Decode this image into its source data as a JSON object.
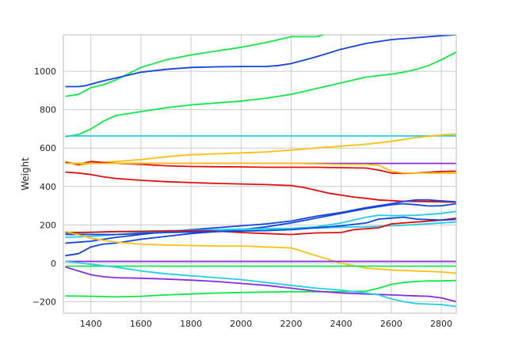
{
  "chart_data": {
    "type": "line",
    "title": "",
    "xlabel": "",
    "ylabel": "Weight",
    "xlim": [
      1290,
      2860
    ],
    "ylim": [
      -260,
      1190
    ],
    "xticks": [
      1400,
      1600,
      1800,
      2000,
      2200,
      2400,
      2600,
      2800
    ],
    "yticks": [
      -200,
      0,
      200,
      400,
      600,
      800,
      1000
    ],
    "ytick_labels": [
      "−200",
      "0",
      "200",
      "400",
      "600",
      "800",
      "1000"
    ],
    "grid": true,
    "legend": "none",
    "series": [
      {
        "color": "#12e84a",
        "x": [
          1300,
          1350,
          1400,
          1450,
          1500,
          1600,
          1700,
          1800,
          1900,
          2000,
          2100,
          2200,
          2300,
          2330
        ],
        "y": [
          870,
          880,
          915,
          930,
          955,
          1020,
          1060,
          1085,
          1105,
          1125,
          1150,
          1180,
          1180,
          1190
        ]
      },
      {
        "color": "#1245e0",
        "x": [
          1300,
          1350,
          1380,
          1420,
          1450,
          1500,
          1550,
          1600,
          1700,
          1800,
          1900,
          2000,
          2100,
          2150,
          2200,
          2300,
          2400,
          2500,
          2600,
          2700,
          2800,
          2860
        ],
        "y": [
          920,
          920,
          925,
          940,
          950,
          965,
          980,
          995,
          1010,
          1020,
          1023,
          1025,
          1025,
          1030,
          1040,
          1075,
          1115,
          1145,
          1165,
          1175,
          1185,
          1190
        ]
      },
      {
        "color": "#12e84a",
        "x": [
          1300,
          1350,
          1400,
          1450,
          1500,
          1600,
          1700,
          1800,
          1900,
          2000,
          2100,
          2200,
          2300,
          2400,
          2500,
          2600,
          2650,
          2700,
          2750,
          2800,
          2860
        ],
        "y": [
          660,
          670,
          700,
          740,
          770,
          790,
          810,
          825,
          835,
          845,
          860,
          880,
          910,
          940,
          970,
          985,
          995,
          1010,
          1030,
          1060,
          1100
        ]
      },
      {
        "color": "#22cee8",
        "x": [
          1300,
          2860
        ],
        "y": [
          663,
          663
        ]
      },
      {
        "color": "#ffc010",
        "x": [
          1300,
          1350,
          1400,
          1450,
          1500,
          1600,
          1700,
          1800,
          1900,
          2000,
          2100,
          2200,
          2300,
          2400,
          2500,
          2600,
          2700,
          2800,
          2860
        ],
        "y": [
          530,
          510,
          520,
          525,
          530,
          540,
          555,
          565,
          570,
          575,
          580,
          590,
          600,
          610,
          620,
          635,
          655,
          668,
          672
        ]
      },
      {
        "color": "#8a2be2",
        "x": [
          1300,
          2860
        ],
        "y": [
          520,
          520
        ]
      },
      {
        "color": "#e01010",
        "x": [
          1300,
          1350,
          1400,
          1450,
          1500,
          1600,
          1700,
          1800,
          1900,
          2000,
          2100,
          2200,
          2300,
          2400,
          2500,
          2550,
          2600,
          2650,
          2700,
          2750,
          2800,
          2860
        ],
        "y": [
          525,
          515,
          530,
          525,
          520,
          515,
          508,
          504,
          503,
          502,
          500,
          500,
          500,
          498,
          496,
          485,
          470,
          468,
          470,
          474,
          478,
          480
        ]
      },
      {
        "color": "#ffc010",
        "x": [
          1300,
          1400,
          1500,
          1600,
          1700,
          1800,
          1900,
          2000,
          2100,
          2200,
          2300,
          2400,
          2500,
          2550,
          2600,
          2650,
          2700,
          2860
        ],
        "y": [
          520,
          520,
          520,
          520,
          520,
          520,
          520,
          520,
          520,
          520,
          518,
          515,
          515,
          510,
          480,
          470,
          470,
          470
        ]
      },
      {
        "color": "#e01010",
        "x": [
          1300,
          1350,
          1400,
          1450,
          1500,
          1600,
          1700,
          1800,
          1900,
          2000,
          2100,
          2200,
          2250,
          2300,
          2350,
          2400,
          2450,
          2500,
          2550,
          2600,
          2650,
          2700,
          2800,
          2860
        ],
        "y": [
          475,
          470,
          462,
          450,
          442,
          432,
          425,
          420,
          416,
          413,
          410,
          405,
          395,
          380,
          365,
          355,
          345,
          338,
          330,
          326,
          323,
          322,
          320,
          318
        ]
      },
      {
        "color": "#1245e0",
        "x": [
          1300,
          1350,
          1400,
          1450,
          1500,
          1600,
          1700,
          1800,
          1900,
          2000,
          2100,
          2200,
          2300,
          2400,
          2500,
          2600,
          2650,
          2700,
          2750,
          2800,
          2860
        ],
        "y": [
          105,
          110,
          115,
          125,
          135,
          150,
          165,
          175,
          185,
          195,
          205,
          220,
          245,
          265,
          290,
          310,
          322,
          330,
          330,
          325,
          320
        ]
      },
      {
        "color": "#1245e0",
        "x": [
          1300,
          1350,
          1400,
          1450,
          1500,
          1600,
          1700,
          1800,
          1900,
          2000,
          2100,
          2200,
          2300,
          2400,
          2500,
          2600,
          2650,
          2700,
          2750,
          2800,
          2860
        ],
        "y": [
          40,
          50,
          85,
          100,
          105,
          125,
          140,
          155,
          165,
          175,
          190,
          210,
          235,
          260,
          285,
          305,
          310,
          305,
          298,
          300,
          310
        ]
      },
      {
        "color": "#22cee8",
        "x": [
          1300,
          1400,
          1500,
          1600,
          1700,
          1800,
          1900,
          2000,
          2100,
          2200,
          2300,
          2400,
          2500,
          2550,
          2600,
          2700,
          2800,
          2860
        ],
        "y": [
          135,
          140,
          150,
          158,
          165,
          170,
          175,
          178,
          180,
          182,
          190,
          210,
          240,
          250,
          248,
          250,
          260,
          270
        ]
      },
      {
        "color": "#22cee8",
        "x": [
          1300,
          1400,
          1500,
          1600,
          1700,
          1800,
          1900,
          2000,
          2100,
          2200,
          2300,
          2400,
          2500,
          2600,
          2650,
          2700,
          2800,
          2860
        ],
        "y": [
          155,
          160,
          165,
          168,
          170,
          172,
          174,
          176,
          178,
          180,
          183,
          188,
          190,
          195,
          198,
          202,
          210,
          215
        ]
      },
      {
        "color": "#e01010",
        "x": [
          1300,
          1400,
          1500,
          1600,
          1700,
          1800,
          1900,
          2000,
          2100,
          2200,
          2300,
          2400,
          2450,
          2500,
          2550,
          2600,
          2700,
          2800,
          2860
        ],
        "y": [
          160,
          162,
          165,
          165,
          168,
          170,
          168,
          160,
          155,
          150,
          158,
          160,
          175,
          180,
          185,
          205,
          215,
          225,
          235
        ]
      },
      {
        "color": "#1245e0",
        "x": [
          1300,
          1400,
          1500,
          1600,
          1700,
          1800,
          1900,
          2000,
          2100,
          2200,
          2300,
          2400,
          2500,
          2550,
          2600,
          2650,
          2700,
          2800,
          2860
        ],
        "y": [
          150,
          150,
          150,
          155,
          160,
          163,
          165,
          168,
          170,
          175,
          185,
          195,
          210,
          230,
          235,
          240,
          230,
          225,
          228
        ]
      },
      {
        "color": "#ffc010",
        "x": [
          1300,
          1400,
          1500,
          1600,
          1700,
          1800,
          1900,
          2000,
          2100,
          2200,
          2300,
          2400,
          2500,
          2600,
          2700,
          2800,
          2860
        ],
        "y": [
          165,
          130,
          110,
          100,
          95,
          92,
          90,
          90,
          85,
          80,
          40,
          0,
          -25,
          -35,
          -40,
          -45,
          -52
        ]
      },
      {
        "color": "#8a2be2",
        "x": [
          1300,
          2860
        ],
        "y": [
          10,
          10
        ]
      },
      {
        "color": "#12e84a",
        "x": [
          1300,
          2860
        ],
        "y": [
          -15,
          -15
        ]
      },
      {
        "color": "#12e84a",
        "x": [
          1300,
          1400,
          1500,
          1600,
          1700,
          1800,
          1900,
          2000,
          2100,
          2200,
          2300,
          2400,
          2500,
          2550,
          2600,
          2650,
          2700,
          2750,
          2800,
          2860
        ],
        "y": [
          -170,
          -172,
          -175,
          -172,
          -165,
          -160,
          -155,
          -152,
          -150,
          -148,
          -148,
          -148,
          -145,
          -130,
          -110,
          -100,
          -95,
          -92,
          -92,
          -90
        ]
      },
      {
        "color": "#8a2be2",
        "x": [
          1300,
          1350,
          1400,
          1450,
          1500,
          1600,
          1700,
          1800,
          1900,
          2000,
          2100,
          2200,
          2300,
          2400,
          2500,
          2600,
          2700,
          2750,
          2800,
          2860
        ],
        "y": [
          -20,
          -40,
          -60,
          -70,
          -75,
          -78,
          -82,
          -88,
          -95,
          -105,
          -115,
          -130,
          -145,
          -155,
          -160,
          -165,
          -170,
          -172,
          -180,
          -200
        ]
      },
      {
        "color": "#22cee8",
        "x": [
          1300,
          1400,
          1500,
          1600,
          1700,
          1800,
          1900,
          2000,
          2100,
          2200,
          2300,
          2400,
          2500,
          2550,
          2600,
          2650,
          2700,
          2800,
          2860
        ],
        "y": [
          10,
          -5,
          -20,
          -40,
          -55,
          -65,
          -75,
          -85,
          -100,
          -115,
          -130,
          -140,
          -155,
          -165,
          -185,
          -200,
          -210,
          -215,
          -225
        ]
      }
    ]
  }
}
